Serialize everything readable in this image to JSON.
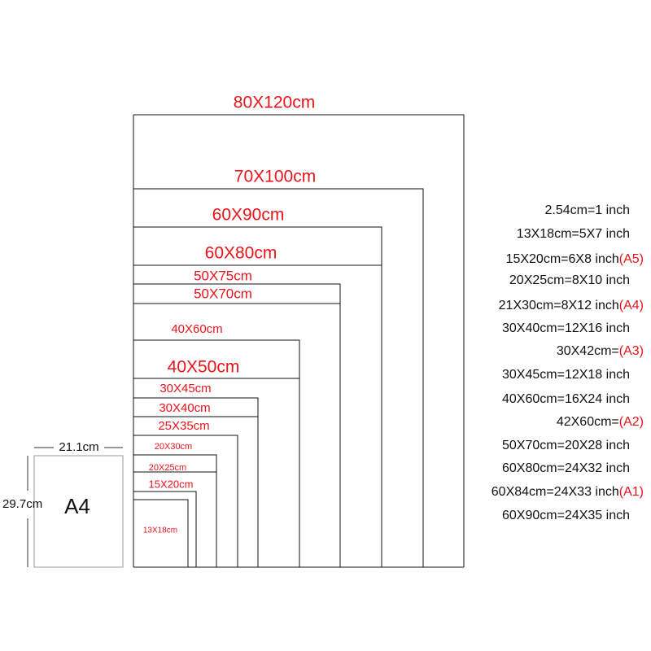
{
  "sizes": [
    "80X120cm",
    "70X100cm",
    "60X90cm",
    "60X80cm",
    "50X75cm",
    "50X70cm",
    "40X60cm",
    "40X50cm",
    "30X45cm",
    "30X40cm",
    "25X35cm",
    "20X30cm",
    "20X25cm",
    "15X20cm",
    "13X18cm"
  ],
  "a4": {
    "label": "A4",
    "width": "21.1cm",
    "height": "29.7cm"
  },
  "conversions": [
    {
      "text": "2.54cm=1 inch"
    },
    {
      "text": "13X18cm=5X7 inch"
    },
    {
      "text": "15X20cm=6X8 inch",
      "tag": "(A5)"
    },
    {
      "text": "20X25cm=8X10 inch"
    },
    {
      "text": "21X30cm=8X12 inch",
      "tag": "(A4)"
    },
    {
      "text": "30X40cm=12X16 inch"
    },
    {
      "text": "30X42cm=",
      "tag": "(A3)"
    },
    {
      "text": "30X45cm=12X18 inch"
    },
    {
      "text": "40X60cm=16X24 inch"
    },
    {
      "text": "42X60cm=",
      "tag": "(A2)"
    },
    {
      "text": "50X70cm=20X28 inch"
    },
    {
      "text": "60X80cm=24X32 inch"
    },
    {
      "text": "60X84cm=24X33 inch",
      "tag": "(A1)"
    },
    {
      "text": "60X90cm=24X35 inch"
    }
  ]
}
